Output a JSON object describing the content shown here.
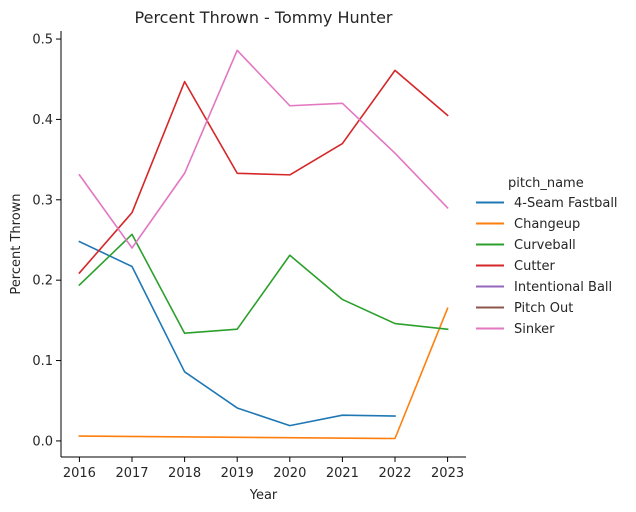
{
  "chart_data": {
    "type": "line",
    "title": "Percent Thrown - Tommy Hunter",
    "xlabel": "Year",
    "ylabel": "Percent Thrown",
    "x": [
      2016,
      2017,
      2018,
      2019,
      2020,
      2021,
      2022,
      2023
    ],
    "x_ticks": [
      "2016",
      "2017",
      "2018",
      "2019",
      "2020",
      "2021",
      "2022",
      "2023"
    ],
    "y_ticks": [
      "0.0",
      "0.1",
      "0.2",
      "0.3",
      "0.4",
      "0.5"
    ],
    "ylim": [
      -0.02,
      0.51
    ],
    "xlim": [
      2015.65,
      2023.35
    ],
    "grid": false,
    "legend": {
      "title": "pitch_name",
      "placement": "right"
    },
    "series": [
      {
        "name": "4-Seam Fastball",
        "color": "#1f77b4",
        "values": [
          0.248,
          0.217,
          0.086,
          0.041,
          0.019,
          0.032,
          0.031,
          null
        ]
      },
      {
        "name": "Changeup",
        "color": "#ff7f0e",
        "values": [
          0.006,
          null,
          null,
          null,
          null,
          null,
          0.003,
          0.165
        ]
      },
      {
        "name": "Curveball",
        "color": "#2ca02c",
        "values": [
          0.194,
          0.257,
          0.134,
          0.139,
          0.231,
          0.176,
          0.146,
          0.139
        ]
      },
      {
        "name": "Cutter",
        "color": "#d62728",
        "values": [
          0.209,
          0.284,
          0.447,
          0.333,
          0.331,
          0.37,
          0.461,
          0.405
        ]
      },
      {
        "name": "Intentional Ball",
        "color": "#9467bd",
        "values": [
          null,
          null,
          null,
          null,
          null,
          null,
          null,
          null
        ]
      },
      {
        "name": "Pitch Out",
        "color": "#8c564b",
        "values": [
          null,
          null,
          null,
          null,
          null,
          null,
          null,
          null
        ]
      },
      {
        "name": "Sinker",
        "color": "#e377c2",
        "values": [
          0.331,
          0.24,
          0.333,
          0.486,
          0.417,
          0.42,
          0.358,
          0.29
        ]
      }
    ]
  }
}
